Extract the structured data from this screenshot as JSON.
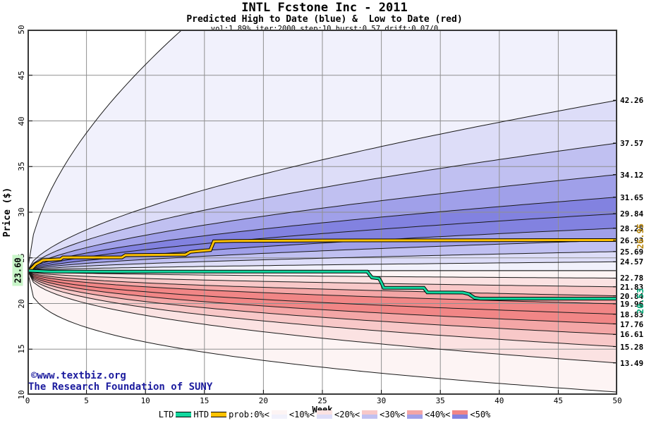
{
  "header": {
    "title": "INTL Fcstone Inc - 2011",
    "subtitle": "Predicted High to Date (blue) &  Low to Date (red)",
    "params": "vol:1.89% iter:2000 step:10 hurst:0.57 drift:0.07/0"
  },
  "axes": {
    "y_label": "Price ($)",
    "x_label": "Week",
    "y_ticks": [
      50,
      45,
      40,
      35,
      30,
      25,
      20,
      15,
      10
    ],
    "x_ticks": [
      0,
      5,
      10,
      15,
      20,
      25,
      30,
      35,
      40,
      45,
      50
    ],
    "y_range": [
      10,
      50
    ],
    "x_range": [
      0,
      50
    ]
  },
  "annotations": {
    "start_price": "23.60",
    "htd_final": "26.95",
    "ltd_final": "20.53",
    "copyright_line1": "©www.textbiz.org",
    "copyright_line2": "The Research Foundation of SUNY"
  },
  "legend": {
    "ltd_label": "LTD",
    "htd_label": "HTD",
    "prob_label": "prob:0%<",
    "band_labels": [
      "<10%<",
      "<20%<",
      "<30%<",
      "<40%<",
      "<50%"
    ]
  },
  "chart_data": {
    "type": "area",
    "description": "Probability fan chart of predicted high-to-date (blue bands, above start) and low-to-date (red bands, below start) with realized HTD and LTD step lines.",
    "start_price": 23.6,
    "weeks": [
      0,
      50
    ],
    "price_axis": [
      10,
      50
    ],
    "grid": true,
    "high_quantiles_week50": [
      42.26,
      37.57,
      34.12,
      31.65,
      29.84,
      28.25,
      26.93,
      25.69,
      24.57
    ],
    "low_quantiles_week50": [
      22.78,
      21.83,
      20.84,
      19.96,
      18.83,
      17.76,
      16.61,
      15.28,
      13.49
    ],
    "right_labels": [
      "42.26",
      "37.57",
      "34.12",
      "31.65",
      "29.84",
      "28.25",
      "26.93",
      "25.69",
      "24.57",
      "22.78",
      "21.83",
      "20.84",
      "19.96",
      "18.83",
      "17.76",
      "16.61",
      "15.28",
      "13.49"
    ],
    "alpha_high": 0.62,
    "alpha_low": 0.45,
    "outer_high": {
      "end": 81.0,
      "alpha": 0.58
    },
    "outer_low": {
      "end": 10.3,
      "alpha": 0.33
    },
    "band_prob_colors_high": [
      "#f1f1fc",
      "#ddddf8",
      "#c0c0f1",
      "#a0a0e9",
      "#8282e0"
    ],
    "band_prob_colors_low": [
      "#fdf4f4",
      "#fbe2e2",
      "#f8c8c8",
      "#f4a6a6",
      "#f18686"
    ],
    "series": [
      {
        "name": "HTD",
        "color": "#ffc200",
        "final_value": 26.95,
        "points": [
          [
            0,
            23.6
          ],
          [
            0.3,
            23.75
          ],
          [
            0.7,
            24.3
          ],
          [
            1.0,
            24.5
          ],
          [
            1.3,
            24.75
          ],
          [
            2.8,
            24.85
          ],
          [
            3.0,
            25.05
          ],
          [
            8.0,
            25.05
          ],
          [
            8.3,
            25.3
          ],
          [
            13.4,
            25.35
          ],
          [
            13.8,
            25.65
          ],
          [
            15.0,
            25.8
          ],
          [
            15.5,
            25.85
          ],
          [
            15.8,
            26.8
          ],
          [
            17.5,
            26.85
          ],
          [
            25,
            26.9
          ],
          [
            50,
            26.95
          ]
        ]
      },
      {
        "name": "LTD",
        "color": "#12d79e",
        "final_value": 20.53,
        "points": [
          [
            0,
            23.6
          ],
          [
            0.8,
            23.55
          ],
          [
            2.0,
            23.5
          ],
          [
            28.8,
            23.5
          ],
          [
            29.2,
            22.85
          ],
          [
            29.8,
            22.75
          ],
          [
            30.0,
            22.3
          ],
          [
            30.2,
            21.72
          ],
          [
            33.6,
            21.72
          ],
          [
            33.9,
            21.22
          ],
          [
            36.9,
            21.2
          ],
          [
            37.4,
            21.05
          ],
          [
            37.9,
            20.62
          ],
          [
            38.4,
            20.53
          ],
          [
            50,
            20.53
          ]
        ]
      }
    ],
    "colors": {
      "grid": "#909090",
      "frame": "#383838",
      "boundary_line": "#1a1a1a",
      "htd_label_text": "#b8860b",
      "ltd_label_text": "#00a878",
      "start_label_bg": "#c8f5c8",
      "copyright_text": "#1c1c9e"
    }
  }
}
